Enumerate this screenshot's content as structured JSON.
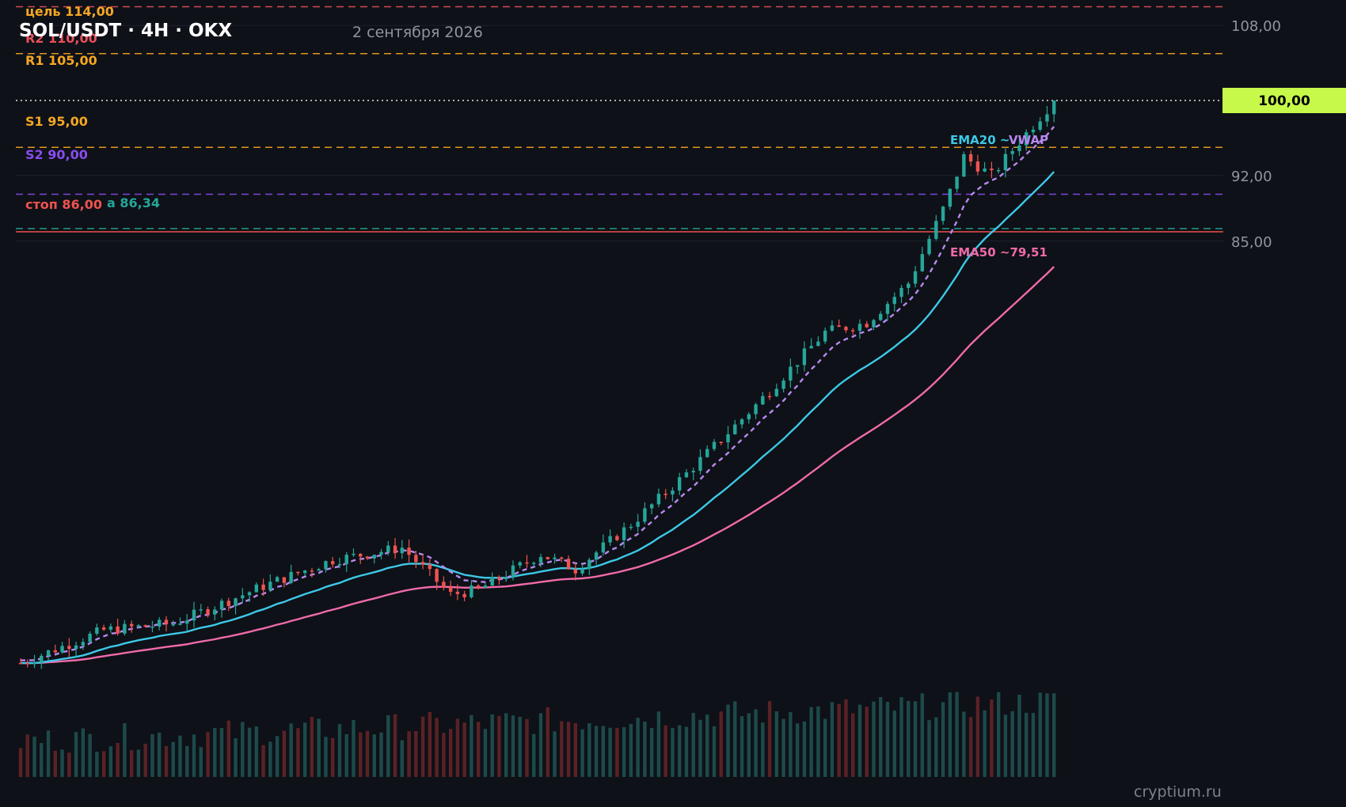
{
  "header": {
    "title": "SOL/USDT · 4H · OKX",
    "date": "2 сентября 2026"
  },
  "watermark": "cryptium.ru",
  "colors": {
    "background": "#0e1117",
    "up": "#26a69a",
    "down": "#ef5350",
    "ema20": "#3dc8e8",
    "ema50": "#f06aaa",
    "vwap": "#b888f0",
    "target": "#f5a623",
    "r1": "#f5a623",
    "r2": "#e8505b",
    "s1": "#f5a623",
    "s2": "#8a4cf0",
    "stop": "#ef5350",
    "entry": "#26a69a",
    "price_badge_bg": "#c6f94a",
    "axis_text": "#8f949e"
  },
  "chart_data": {
    "type": "candlestick",
    "timeframe": "4H",
    "symbol": "SOL/USDT",
    "exchange": "OKX",
    "candles_count": 150,
    "price_range": [
      40.0,
      117.0
    ],
    "y_ticks": [
      "108,00",
      "92,00",
      "85,00"
    ],
    "y_tick_values": [
      108,
      92,
      85
    ],
    "current_price": 100,
    "current_price_label": "100,00",
    "levels": [
      {
        "key": "target",
        "value": 114,
        "label": "цель 114,00",
        "style": "dashed"
      },
      {
        "key": "r2",
        "value": 110,
        "label": "R2 110,00",
        "style": "dashed"
      },
      {
        "key": "r1",
        "value": 105,
        "label": "R1 105,00",
        "style": "dashed"
      },
      {
        "key": "s1",
        "value": 95,
        "label": "S1 95,00",
        "style": "dashed"
      },
      {
        "key": "s2",
        "value": 90,
        "label": "S2 90,00",
        "style": "dashed"
      },
      {
        "key": "entry",
        "value": 86.34,
        "label": "а 86,34",
        "style": "dashed"
      },
      {
        "key": "stop",
        "value": 86,
        "label": "стоп 86,00",
        "style": "solid"
      }
    ],
    "indicators": [
      {
        "key": "ema20",
        "label": "EMA20 ~",
        "last": 91.3
      },
      {
        "key": "vwap",
        "label": "VWAP",
        "last": 95.6
      },
      {
        "key": "ema50",
        "label": "EMA50 ~79,51",
        "last": 79.51
      }
    ],
    "price_path": {
      "start": 40.0,
      "anchors": [
        [
          0,
          40.0
        ],
        [
          12,
          43.5
        ],
        [
          22,
          44.2
        ],
        [
          35,
          48.2
        ],
        [
          45,
          51.0
        ],
        [
          55,
          52.3
        ],
        [
          62,
          47.3
        ],
        [
          66,
          47.8
        ],
        [
          75,
          51.6
        ],
        [
          80,
          50.0
        ],
        [
          88,
          54.8
        ],
        [
          96,
          60.2
        ],
        [
          106,
          67.5
        ],
        [
          116,
          75.3
        ],
        [
          122,
          76.3
        ],
        [
          128,
          80.5
        ],
        [
          133,
          88.4
        ],
        [
          136,
          94.0
        ],
        [
          140,
          92.0
        ],
        [
          145,
          96.5
        ],
        [
          149,
          100.0
        ]
      ]
    }
  }
}
